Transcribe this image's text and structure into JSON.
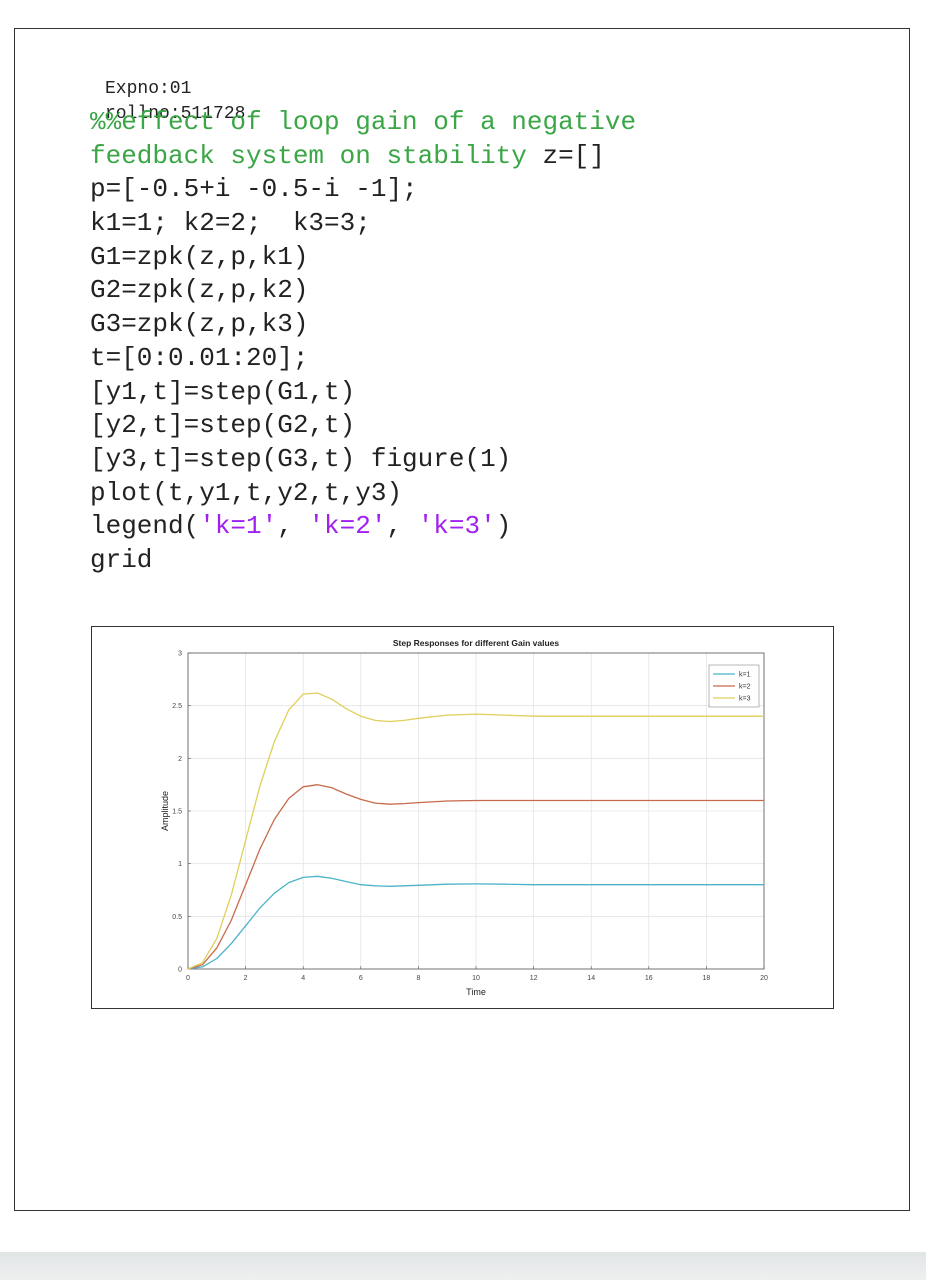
{
  "header": {
    "expno": "Expno:01",
    "rollno": "rollno:511728"
  },
  "code": {
    "lines": [
      [
        {
          "t": "%%effect of loop gain of a negative",
          "c": "cm"
        }
      ],
      [
        {
          "t": "feedback system on stability",
          "c": "cm"
        },
        {
          "t": " z=[]",
          "c": ""
        }
      ],
      [
        {
          "t": "p=[-0.5+i -0.5-i -1];",
          "c": ""
        }
      ],
      [
        {
          "t": "k1=1; k2=2;  k3=3;",
          "c": ""
        }
      ],
      [
        {
          "t": "G1=zpk(z,p,k1)",
          "c": ""
        }
      ],
      [
        {
          "t": "G2=zpk(z,p,k2)",
          "c": ""
        }
      ],
      [
        {
          "t": "G3=zpk(z,p,k3)",
          "c": ""
        }
      ],
      [
        {
          "t": "t=[0:0.01:20];",
          "c": ""
        }
      ],
      [
        {
          "t": "[y1,t]=step(G1,t)",
          "c": ""
        }
      ],
      [
        {
          "t": "[y2,t]=step(G2,t)",
          "c": ""
        }
      ],
      [
        {
          "t": "[y3,t]=step(G3,t) figure(1)",
          "c": ""
        }
      ],
      [
        {
          "t": "plot(t,y1,t,y2,t,y3)",
          "c": ""
        }
      ],
      [
        {
          "t": "legend(",
          "c": ""
        },
        {
          "t": "'k=1'",
          "c": "st"
        },
        {
          "t": ", ",
          "c": ""
        },
        {
          "t": "'k=2'",
          "c": "st"
        },
        {
          "t": ", ",
          "c": ""
        },
        {
          "t": "'k=3'",
          "c": "st"
        },
        {
          "t": ")",
          "c": ""
        }
      ],
      [
        {
          "t": "grid",
          "c": ""
        }
      ]
    ]
  },
  "chart_data": {
    "type": "line",
    "title": "Step Responses for different Gain values",
    "xlabel": "Time",
    "ylabel": "Amplitude",
    "xlim": [
      0,
      20
    ],
    "ylim": [
      0,
      3
    ],
    "xticks": [
      0,
      2,
      4,
      6,
      8,
      10,
      12,
      14,
      16,
      18,
      20
    ],
    "yticks": [
      0,
      0.5,
      1,
      1.5,
      2,
      2.5,
      3
    ],
    "grid": true,
    "legend_position": "top-right",
    "x": [
      0,
      0.5,
      1,
      1.5,
      2,
      2.5,
      3,
      3.5,
      4,
      4.5,
      5,
      5.5,
      6,
      6.5,
      7,
      7.5,
      8,
      9,
      10,
      11,
      12,
      13,
      14,
      15,
      16,
      17,
      18,
      19,
      20
    ],
    "series": [
      {
        "name": "k=1",
        "color": "#4bb3c9",
        "values": [
          0,
          0.02,
          0.1,
          0.24,
          0.41,
          0.58,
          0.72,
          0.82,
          0.87,
          0.88,
          0.86,
          0.83,
          0.8,
          0.79,
          0.785,
          0.79,
          0.795,
          0.805,
          0.808,
          0.805,
          0.8,
          0.8,
          0.8,
          0.8,
          0.8,
          0.8,
          0.8,
          0.8,
          0.8
        ]
      },
      {
        "name": "k=2",
        "color": "#c76a4a",
        "values": [
          0,
          0.04,
          0.2,
          0.46,
          0.8,
          1.14,
          1.42,
          1.62,
          1.73,
          1.75,
          1.72,
          1.66,
          1.61,
          1.575,
          1.565,
          1.57,
          1.58,
          1.595,
          1.6,
          1.6,
          1.6,
          1.6,
          1.6,
          1.6,
          1.6,
          1.6,
          1.6,
          1.6,
          1.6
        ]
      },
      {
        "name": "k=3",
        "color": "#e0cf5a",
        "values": [
          0,
          0.06,
          0.29,
          0.7,
          1.22,
          1.74,
          2.16,
          2.46,
          2.61,
          2.62,
          2.56,
          2.47,
          2.4,
          2.36,
          2.35,
          2.36,
          2.38,
          2.41,
          2.42,
          2.41,
          2.4,
          2.4,
          2.4,
          2.4,
          2.4,
          2.4,
          2.4,
          2.4,
          2.4
        ]
      }
    ]
  }
}
